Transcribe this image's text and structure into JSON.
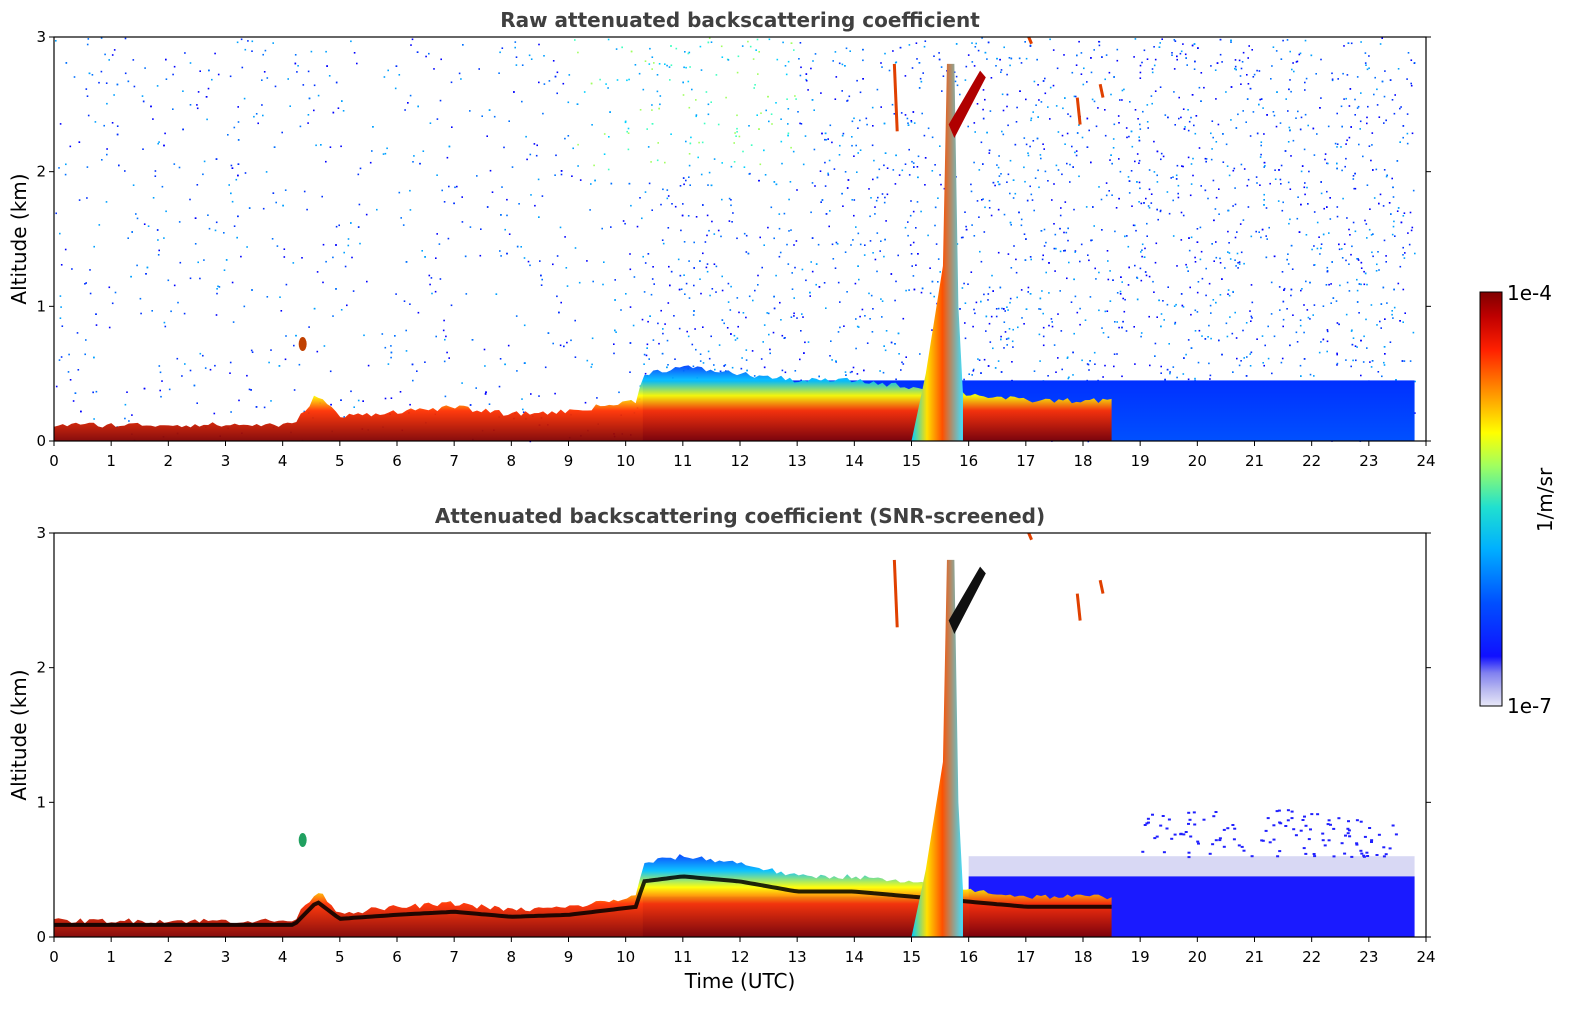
{
  "chart_data": [
    {
      "type": "heatmap",
      "title": "Raw attenuated backscattering coefficient",
      "xlabel": "",
      "ylabel": "Altitude (km)",
      "xlim": [
        0,
        24
      ],
      "ylim": [
        0,
        3
      ],
      "x_ticks": [
        "0",
        "1",
        "2",
        "3",
        "4",
        "5",
        "6",
        "7",
        "8",
        "9",
        "10",
        "11",
        "12",
        "13",
        "14",
        "15",
        "16",
        "17",
        "18",
        "19",
        "20",
        "21",
        "22",
        "23",
        "24"
      ],
      "y_ticks": [
        "0",
        "1",
        "2",
        "3"
      ],
      "colorscale": "jet",
      "data_extent_x": [
        0,
        23.8
      ],
      "boundary_layer_top_km": [
        [
          0,
          0.12
        ],
        [
          4.2,
          0.12
        ],
        [
          4.6,
          0.35
        ],
        [
          5,
          0.18
        ],
        [
          6,
          0.22
        ],
        [
          7,
          0.25
        ],
        [
          8,
          0.2
        ],
        [
          9,
          0.22
        ],
        [
          10.2,
          0.3
        ],
        [
          10.3,
          0.5
        ],
        [
          11,
          0.55
        ],
        [
          12,
          0.5
        ],
        [
          13,
          0.45
        ],
        [
          14,
          0.45
        ],
        [
          15,
          0.4
        ],
        [
          16,
          0.35
        ],
        [
          17,
          0.3
        ],
        [
          18.5,
          0.3
        ]
      ],
      "plume": {
        "x_start": 15.0,
        "x_end": 15.9,
        "top_km": 2.8
      }
    },
    {
      "type": "heatmap",
      "title": "Attenuated backscattering coefficient (SNR-screened)",
      "xlabel": "Time (UTC)",
      "ylabel": "Altitude (km)",
      "xlim": [
        0,
        24
      ],
      "ylim": [
        0,
        3
      ],
      "x_ticks": [
        "0",
        "1",
        "2",
        "3",
        "4",
        "5",
        "6",
        "7",
        "8",
        "9",
        "10",
        "11",
        "12",
        "13",
        "14",
        "15",
        "16",
        "17",
        "18",
        "19",
        "20",
        "21",
        "22",
        "23",
        "24"
      ],
      "y_ticks": [
        "0",
        "1",
        "2",
        "3"
      ],
      "colorscale": "jet",
      "data_extent_x": [
        0,
        23.8
      ],
      "boundary_layer_top_km": [
        [
          0,
          0.12
        ],
        [
          4.2,
          0.12
        ],
        [
          4.6,
          0.35
        ],
        [
          5,
          0.18
        ],
        [
          6,
          0.22
        ],
        [
          7,
          0.25
        ],
        [
          8,
          0.2
        ],
        [
          9,
          0.22
        ],
        [
          10.2,
          0.3
        ],
        [
          10.3,
          0.55
        ],
        [
          11,
          0.6
        ],
        [
          12,
          0.55
        ],
        [
          13,
          0.45
        ],
        [
          14,
          0.45
        ],
        [
          15,
          0.4
        ],
        [
          16,
          0.35
        ],
        [
          17,
          0.3
        ],
        [
          18.5,
          0.3
        ]
      ],
      "plume": {
        "x_start": 15.0,
        "x_end": 15.9,
        "top_km": 2.8
      }
    }
  ],
  "colorbar": {
    "label": "1/m/sr",
    "max_label": "1e-4",
    "min_label": "1e-7",
    "colors": [
      "#7f0000",
      "#ff0000",
      "#ff8000",
      "#ffff00",
      "#80ff80",
      "#00ffff",
      "#0080ff",
      "#0000ff",
      "#0000c0"
    ]
  }
}
